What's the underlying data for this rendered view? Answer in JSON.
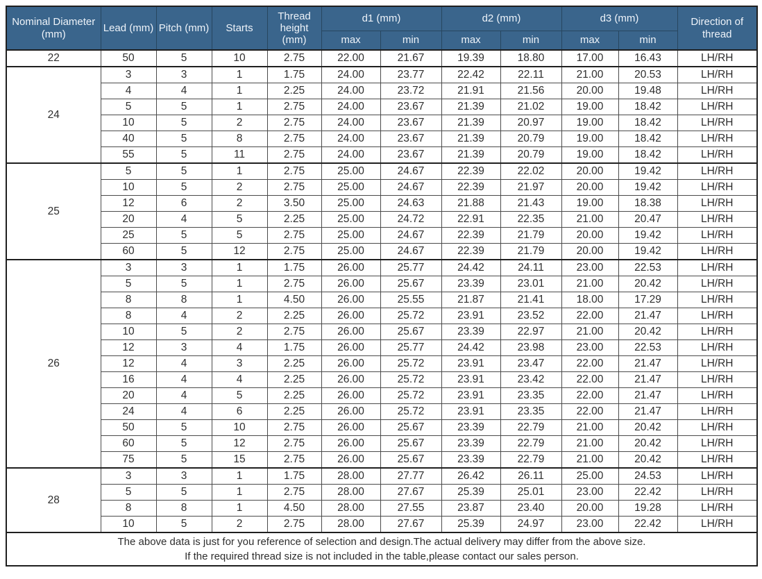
{
  "table": {
    "title": "trapezoidal-thread-dimension-table",
    "colors": {
      "header_bg": "#3a658c",
      "header_text": "#eef3f9",
      "outer_border": "#1f1f1f",
      "inner_border": "#4a4a4a",
      "body_text": "#2e2e2e"
    },
    "header": {
      "nominal_diameter": "Nominal Diameter (mm)",
      "lead": "Lead (mm)",
      "pitch": "Pitch (mm)",
      "starts": "Starts",
      "thread_height": "Thread height (mm)",
      "d1": "d1 (mm)",
      "d2": "d2 (mm)",
      "d3": "d3 (mm)",
      "max": "max",
      "min": "min",
      "direction": "Direction of thread"
    },
    "columns": [
      "lead",
      "pitch",
      "starts",
      "thread-height",
      "d1-max",
      "d1-min",
      "d2-max",
      "d2-min",
      "d3-max",
      "d3-min",
      "direction"
    ],
    "groups": [
      {
        "diameter": "22",
        "rows": [
          [
            "50",
            "5",
            "10",
            "2.75",
            "22.00",
            "21.67",
            "19.39",
            "18.80",
            "17.00",
            "16.43",
            "LH/RH"
          ]
        ]
      },
      {
        "diameter": "24",
        "rows": [
          [
            "3",
            "3",
            "1",
            "1.75",
            "24.00",
            "23.77",
            "22.42",
            "22.11",
            "21.00",
            "20.53",
            "LH/RH"
          ],
          [
            "4",
            "4",
            "1",
            "2.25",
            "24.00",
            "23.72",
            "21.91",
            "21.56",
            "20.00",
            "19.48",
            "LH/RH"
          ],
          [
            "5",
            "5",
            "1",
            "2.75",
            "24.00",
            "23.67",
            "21.39",
            "21.02",
            "19.00",
            "18.42",
            "LH/RH"
          ],
          [
            "10",
            "5",
            "2",
            "2.75",
            "24.00",
            "23.67",
            "21.39",
            "20.97",
            "19.00",
            "18.42",
            "LH/RH"
          ],
          [
            "40",
            "5",
            "8",
            "2.75",
            "24.00",
            "23.67",
            "21.39",
            "20.79",
            "19.00",
            "18.42",
            "LH/RH"
          ],
          [
            "55",
            "5",
            "11",
            "2.75",
            "24.00",
            "23.67",
            "21.39",
            "20.79",
            "19.00",
            "18.42",
            "LH/RH"
          ]
        ]
      },
      {
        "diameter": "25",
        "rows": [
          [
            "5",
            "5",
            "1",
            "2.75",
            "25.00",
            "24.67",
            "22.39",
            "22.02",
            "20.00",
            "19.42",
            "LH/RH"
          ],
          [
            "10",
            "5",
            "2",
            "2.75",
            "25.00",
            "24.67",
            "22.39",
            "21.97",
            "20.00",
            "19.42",
            "LH/RH"
          ],
          [
            "12",
            "6",
            "2",
            "3.50",
            "25.00",
            "24.63",
            "21.88",
            "21.43",
            "19.00",
            "18.38",
            "LH/RH"
          ],
          [
            "20",
            "4",
            "5",
            "2.25",
            "25.00",
            "24.72",
            "22.91",
            "22.35",
            "21.00",
            "20.47",
            "LH/RH"
          ],
          [
            "25",
            "5",
            "5",
            "2.75",
            "25.00",
            "24.67",
            "22.39",
            "21.79",
            "20.00",
            "19.42",
            "LH/RH"
          ],
          [
            "60",
            "5",
            "12",
            "2.75",
            "25.00",
            "24.67",
            "22.39",
            "21.79",
            "20.00",
            "19.42",
            "LH/RH"
          ]
        ]
      },
      {
        "diameter": "26",
        "rows": [
          [
            "3",
            "3",
            "1",
            "1.75",
            "26.00",
            "25.77",
            "24.42",
            "24.11",
            "23.00",
            "22.53",
            "LH/RH"
          ],
          [
            "5",
            "5",
            "1",
            "2.75",
            "26.00",
            "25.67",
            "23.39",
            "23.01",
            "21.00",
            "20.42",
            "LH/RH"
          ],
          [
            "8",
            "8",
            "1",
            "4.50",
            "26.00",
            "25.55",
            "21.87",
            "21.41",
            "18.00",
            "17.29",
            "LH/RH"
          ],
          [
            "8",
            "4",
            "2",
            "2.25",
            "26.00",
            "25.72",
            "23.91",
            "23.52",
            "22.00",
            "21.47",
            "LH/RH"
          ],
          [
            "10",
            "5",
            "2",
            "2.75",
            "26.00",
            "25.67",
            "23.39",
            "22.97",
            "21.00",
            "20.42",
            "LH/RH"
          ],
          [
            "12",
            "3",
            "4",
            "1.75",
            "26.00",
            "25.77",
            "24.42",
            "23.98",
            "23.00",
            "22.53",
            "LH/RH"
          ],
          [
            "12",
            "4",
            "3",
            "2.25",
            "26.00",
            "25.72",
            "23.91",
            "23.47",
            "22.00",
            "21.47",
            "LH/RH"
          ],
          [
            "16",
            "4",
            "4",
            "2.25",
            "26.00",
            "25.72",
            "23.91",
            "23.42",
            "22.00",
            "21.47",
            "LH/RH"
          ],
          [
            "20",
            "4",
            "5",
            "2.25",
            "26.00",
            "25.72",
            "23.91",
            "23.35",
            "22.00",
            "21.47",
            "LH/RH"
          ],
          [
            "24",
            "4",
            "6",
            "2.25",
            "26.00",
            "25.72",
            "23.91",
            "23.35",
            "22.00",
            "21.47",
            "LH/RH"
          ],
          [
            "50",
            "5",
            "10",
            "2.75",
            "26.00",
            "25.67",
            "23.39",
            "22.79",
            "21.00",
            "20.42",
            "LH/RH"
          ],
          [
            "60",
            "5",
            "12",
            "2.75",
            "26.00",
            "25.67",
            "23.39",
            "22.79",
            "21.00",
            "20.42",
            "LH/RH"
          ],
          [
            "75",
            "5",
            "15",
            "2.75",
            "26.00",
            "25.67",
            "23.39",
            "22.79",
            "21.00",
            "20.42",
            "LH/RH"
          ]
        ]
      },
      {
        "diameter": "28",
        "rows": [
          [
            "3",
            "3",
            "1",
            "1.75",
            "28.00",
            "27.77",
            "26.42",
            "26.11",
            "25.00",
            "24.53",
            "LH/RH"
          ],
          [
            "5",
            "5",
            "1",
            "2.75",
            "28.00",
            "27.67",
            "25.39",
            "25.01",
            "23.00",
            "22.42",
            "LH/RH"
          ],
          [
            "8",
            "8",
            "1",
            "4.50",
            "28.00",
            "27.55",
            "23.87",
            "23.40",
            "20.00",
            "19.28",
            "LH/RH"
          ],
          [
            "10",
            "5",
            "2",
            "2.75",
            "28.00",
            "27.67",
            "25.39",
            "24.97",
            "23.00",
            "22.42",
            "LH/RH"
          ]
        ]
      }
    ],
    "footer": {
      "line1": "The above data is just for you reference of selection and design.The actual delivery may differ from the above size.",
      "line2": "If the required thread size is not included in the table,please contact our sales person."
    }
  }
}
